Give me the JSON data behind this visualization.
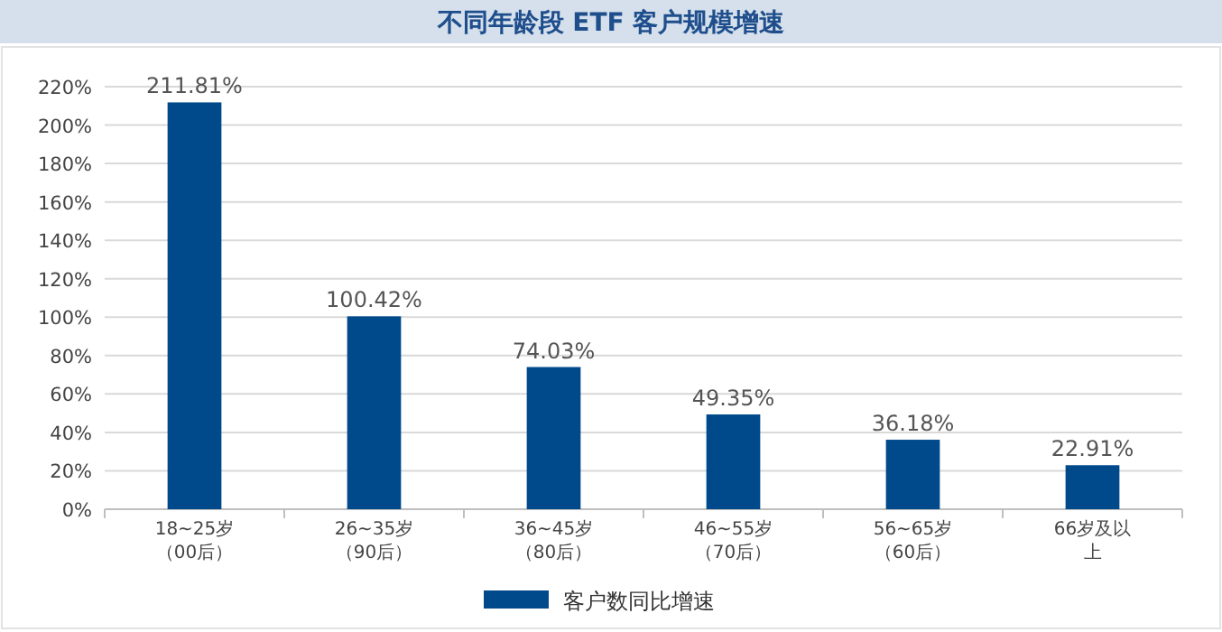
{
  "chart_data": {
    "type": "bar",
    "title": "不同年龄段 ETF 客户规模增速",
    "categories": [
      "18~25岁（00后）",
      "26~35岁（90后）",
      "36~45岁（80后）",
      "46~55岁（70后）",
      "56~65岁（60后）",
      "66岁及以上"
    ],
    "series": [
      {
        "name": "客户数同比增速",
        "color": "#004a8c",
        "values": [
          211.81,
          100.42,
          74.03,
          49.35,
          36.18,
          22.91
        ],
        "value_labels": [
          "211.81%",
          "100.42%",
          "74.03%",
          "49.35%",
          "36.18%",
          "22.91%"
        ]
      }
    ],
    "ylim": [
      0,
      220
    ],
    "yticks": [
      {
        "value": 0,
        "label": "0%"
      },
      {
        "value": 20,
        "label": "20%"
      },
      {
        "value": 40,
        "label": "40%"
      },
      {
        "value": 60,
        "label": "60%"
      },
      {
        "value": 80,
        "label": "80%"
      },
      {
        "value": 100,
        "label": "100%"
      },
      {
        "value": 120,
        "label": "120%"
      },
      {
        "value": 140,
        "label": "140%"
      },
      {
        "value": 160,
        "label": "160%"
      },
      {
        "value": 180,
        "label": "180%"
      },
      {
        "value": 200,
        "label": "200%"
      },
      {
        "value": 220,
        "label": "220%"
      }
    ],
    "grid": "y",
    "legend": "bottom"
  }
}
